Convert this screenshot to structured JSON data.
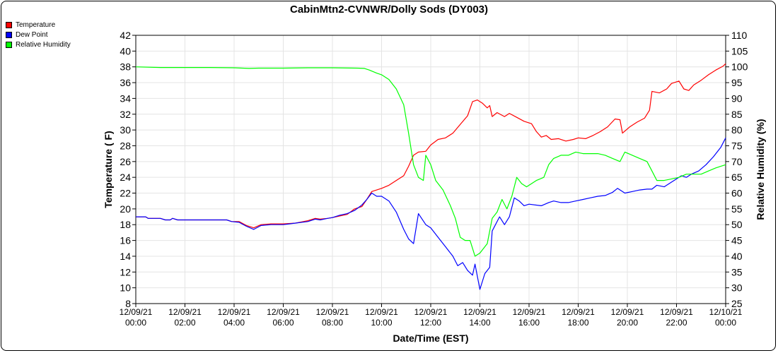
{
  "chart_data": {
    "type": "line",
    "title": "CabinMtn2-CVNWR/Dolly Sods (DY003)",
    "xlabel": "Date/Time (EST)",
    "ylabel_left": "Temperature ( F)",
    "ylabel_right": "Relative Humidity (%)",
    "ylim_left": [
      8,
      42
    ],
    "ylim_right": [
      25,
      110
    ],
    "yticks_left": [
      8,
      10,
      12,
      14,
      16,
      18,
      20,
      22,
      24,
      26,
      28,
      30,
      32,
      34,
      36,
      38,
      40,
      42
    ],
    "yticks_right": [
      25,
      30,
      35,
      40,
      45,
      50,
      55,
      60,
      65,
      70,
      75,
      80,
      85,
      90,
      95,
      100,
      105,
      110
    ],
    "xlim": [
      0,
      24
    ],
    "xticks": [
      {
        "hour": 0,
        "date": "12/09/21",
        "time": "00:00"
      },
      {
        "hour": 2,
        "date": "12/09/21",
        "time": "02:00"
      },
      {
        "hour": 4,
        "date": "12/09/21",
        "time": "04:00"
      },
      {
        "hour": 6,
        "date": "12/09/21",
        "time": "06:00"
      },
      {
        "hour": 8,
        "date": "12/09/21",
        "time": "08:00"
      },
      {
        "hour": 10,
        "date": "12/09/21",
        "time": "10:00"
      },
      {
        "hour": 12,
        "date": "12/09/21",
        "time": "12:00"
      },
      {
        "hour": 14,
        "date": "12/09/21",
        "time": "14:00"
      },
      {
        "hour": 16,
        "date": "12/09/21",
        "time": "16:00"
      },
      {
        "hour": 18,
        "date": "12/09/21",
        "time": "18:00"
      },
      {
        "hour": 20,
        "date": "12/09/21",
        "time": "20:00"
      },
      {
        "hour": 22,
        "date": "12/09/21",
        "time": "22:00"
      },
      {
        "hour": 24,
        "date": "12/10/21",
        "time": "00:00"
      }
    ],
    "grid": true,
    "legend_position": "top-left",
    "series": [
      {
        "name": "Temperature",
        "color": "#ff0000",
        "axis": "left",
        "points": [
          [
            0,
            19
          ],
          [
            0.4,
            19
          ],
          [
            0.5,
            18.8
          ],
          [
            1,
            18.8
          ],
          [
            1.2,
            18.6
          ],
          [
            1.4,
            18.6
          ],
          [
            1.5,
            18.8
          ],
          [
            1.7,
            18.6
          ],
          [
            2,
            18.6
          ],
          [
            3,
            18.6
          ],
          [
            3.7,
            18.6
          ],
          [
            3.9,
            18.4
          ],
          [
            4.2,
            18.4
          ],
          [
            4.5,
            17.9
          ],
          [
            4.8,
            17.6
          ],
          [
            5.1,
            18
          ],
          [
            5.5,
            18.1
          ],
          [
            6,
            18.1
          ],
          [
            6.5,
            18.2
          ],
          [
            7,
            18.5
          ],
          [
            7.3,
            18.8
          ],
          [
            7.5,
            18.7
          ],
          [
            7.8,
            18.8
          ],
          [
            8,
            18.9
          ],
          [
            8.3,
            19.1
          ],
          [
            8.6,
            19.3
          ],
          [
            8.9,
            20
          ],
          [
            9.2,
            20.3
          ],
          [
            9.4,
            21.2
          ],
          [
            9.6,
            22.2
          ],
          [
            9.8,
            22.4
          ],
          [
            10,
            22.6
          ],
          [
            10.3,
            23
          ],
          [
            10.6,
            23.6
          ],
          [
            10.9,
            24.2
          ],
          [
            11.1,
            25.4
          ],
          [
            11.3,
            26.8
          ],
          [
            11.5,
            27.2
          ],
          [
            11.8,
            27.3
          ],
          [
            12,
            28.1
          ],
          [
            12.3,
            28.8
          ],
          [
            12.6,
            29
          ],
          [
            12.9,
            29.6
          ],
          [
            13.2,
            30.7
          ],
          [
            13.5,
            31.8
          ],
          [
            13.7,
            33.6
          ],
          [
            13.9,
            33.8
          ],
          [
            14.1,
            33.4
          ],
          [
            14.3,
            32.8
          ],
          [
            14.4,
            33.1
          ],
          [
            14.5,
            31.7
          ],
          [
            14.7,
            32.2
          ],
          [
            15,
            31.7
          ],
          [
            15.2,
            32.1
          ],
          [
            15.5,
            31.6
          ],
          [
            15.8,
            31.1
          ],
          [
            16.1,
            30.8
          ],
          [
            16.3,
            29.8
          ],
          [
            16.5,
            29.1
          ],
          [
            16.7,
            29.3
          ],
          [
            16.9,
            28.8
          ],
          [
            17.2,
            28.9
          ],
          [
            17.5,
            28.6
          ],
          [
            17.8,
            28.8
          ],
          [
            18,
            29
          ],
          [
            18.3,
            28.9
          ],
          [
            18.6,
            29.3
          ],
          [
            18.9,
            29.8
          ],
          [
            19.2,
            30.4
          ],
          [
            19.5,
            31.4
          ],
          [
            19.7,
            31.3
          ],
          [
            19.8,
            29.6
          ],
          [
            20.1,
            30.4
          ],
          [
            20.4,
            31
          ],
          [
            20.7,
            31.5
          ],
          [
            20.9,
            32.5
          ],
          [
            21,
            34.9
          ],
          [
            21.3,
            34.7
          ],
          [
            21.6,
            35.2
          ],
          [
            21.8,
            35.9
          ],
          [
            22.1,
            36.2
          ],
          [
            22.3,
            35.2
          ],
          [
            22.5,
            35
          ],
          [
            22.7,
            35.7
          ],
          [
            23,
            36.3
          ],
          [
            23.3,
            37
          ],
          [
            23.6,
            37.6
          ],
          [
            23.9,
            38.1
          ],
          [
            24,
            38.4
          ]
        ]
      },
      {
        "name": "Dew Point",
        "color": "#0000ff",
        "axis": "left",
        "points": [
          [
            0,
            19
          ],
          [
            0.4,
            19
          ],
          [
            0.5,
            18.8
          ],
          [
            1,
            18.8
          ],
          [
            1.2,
            18.6
          ],
          [
            1.4,
            18.6
          ],
          [
            1.5,
            18.8
          ],
          [
            1.7,
            18.6
          ],
          [
            2,
            18.6
          ],
          [
            3,
            18.6
          ],
          [
            3.7,
            18.6
          ],
          [
            3.9,
            18.4
          ],
          [
            4.2,
            18.3
          ],
          [
            4.5,
            17.8
          ],
          [
            4.8,
            17.4
          ],
          [
            5.1,
            17.9
          ],
          [
            5.5,
            18
          ],
          [
            6,
            18
          ],
          [
            6.5,
            18.2
          ],
          [
            7,
            18.4
          ],
          [
            7.3,
            18.7
          ],
          [
            7.5,
            18.6
          ],
          [
            7.8,
            18.8
          ],
          [
            8,
            18.9
          ],
          [
            8.3,
            19.2
          ],
          [
            8.6,
            19.4
          ],
          [
            8.9,
            19.8
          ],
          [
            9.2,
            20.5
          ],
          [
            9.4,
            21.2
          ],
          [
            9.6,
            22
          ],
          [
            9.8,
            21.6
          ],
          [
            10,
            21.6
          ],
          [
            10.3,
            21
          ],
          [
            10.6,
            19.6
          ],
          [
            10.9,
            17.4
          ],
          [
            11.1,
            16.2
          ],
          [
            11.3,
            15.6
          ],
          [
            11.5,
            19.4
          ],
          [
            11.8,
            18
          ],
          [
            12,
            17.6
          ],
          [
            12.3,
            16.4
          ],
          [
            12.6,
            15.2
          ],
          [
            12.9,
            14
          ],
          [
            13.1,
            12.8
          ],
          [
            13.3,
            13.2
          ],
          [
            13.5,
            12.2
          ],
          [
            13.7,
            11.6
          ],
          [
            13.8,
            13
          ],
          [
            14,
            9.8
          ],
          [
            14.2,
            11.8
          ],
          [
            14.4,
            12.6
          ],
          [
            14.5,
            17.2
          ],
          [
            14.8,
            19
          ],
          [
            15,
            18
          ],
          [
            15.2,
            19
          ],
          [
            15.4,
            21.4
          ],
          [
            15.6,
            21
          ],
          [
            15.8,
            20.4
          ],
          [
            16,
            20.6
          ],
          [
            16.5,
            20.4
          ],
          [
            16.8,
            20.8
          ],
          [
            17,
            21
          ],
          [
            17.3,
            20.8
          ],
          [
            17.6,
            20.8
          ],
          [
            17.9,
            21
          ],
          [
            18.2,
            21.2
          ],
          [
            18.5,
            21.4
          ],
          [
            18.8,
            21.6
          ],
          [
            19.1,
            21.7
          ],
          [
            19.4,
            22.1
          ],
          [
            19.6,
            22.6
          ],
          [
            19.9,
            22
          ],
          [
            20.2,
            22.2
          ],
          [
            20.5,
            22.4
          ],
          [
            20.8,
            22.5
          ],
          [
            21,
            22.5
          ],
          [
            21.2,
            23
          ],
          [
            21.5,
            22.8
          ],
          [
            21.8,
            23.4
          ],
          [
            22,
            23.8
          ],
          [
            22.2,
            24.2
          ],
          [
            22.4,
            24
          ],
          [
            22.6,
            24.4
          ],
          [
            22.9,
            24.8
          ],
          [
            23.2,
            25.6
          ],
          [
            23.5,
            26.6
          ],
          [
            23.8,
            27.8
          ],
          [
            24,
            29
          ]
        ]
      },
      {
        "name": "Relative Humidity",
        "color": "#00ff00",
        "axis": "right",
        "points": [
          [
            0,
            100
          ],
          [
            1,
            99.8
          ],
          [
            2,
            99.8
          ],
          [
            3,
            99.8
          ],
          [
            4,
            99.7
          ],
          [
            4.6,
            99.5
          ],
          [
            5,
            99.6
          ],
          [
            6,
            99.6
          ],
          [
            7,
            99.7
          ],
          [
            8,
            99.7
          ],
          [
            9,
            99.6
          ],
          [
            9.3,
            99.5
          ],
          [
            9.5,
            99
          ],
          [
            9.8,
            98
          ],
          [
            10,
            97.5
          ],
          [
            10.3,
            96
          ],
          [
            10.6,
            93
          ],
          [
            10.9,
            88
          ],
          [
            11.1,
            79
          ],
          [
            11.3,
            69
          ],
          [
            11.5,
            65
          ],
          [
            11.7,
            64
          ],
          [
            11.8,
            72
          ],
          [
            12,
            69
          ],
          [
            12.2,
            64
          ],
          [
            12.5,
            61
          ],
          [
            12.8,
            56
          ],
          [
            13,
            52
          ],
          [
            13.2,
            46
          ],
          [
            13.4,
            45
          ],
          [
            13.6,
            45
          ],
          [
            13.8,
            40
          ],
          [
            14,
            41
          ],
          [
            14.3,
            44
          ],
          [
            14.5,
            52
          ],
          [
            14.7,
            54
          ],
          [
            14.9,
            58
          ],
          [
            15.1,
            55
          ],
          [
            15.3,
            59
          ],
          [
            15.5,
            65
          ],
          [
            15.7,
            63
          ],
          [
            15.9,
            62
          ],
          [
            16.1,
            63
          ],
          [
            16.3,
            64
          ],
          [
            16.6,
            65
          ],
          [
            16.8,
            69
          ],
          [
            17,
            71
          ],
          [
            17.3,
            72
          ],
          [
            17.6,
            72
          ],
          [
            17.9,
            73
          ],
          [
            18.2,
            72.5
          ],
          [
            18.5,
            72.5
          ],
          [
            18.8,
            72.5
          ],
          [
            19.1,
            72
          ],
          [
            19.4,
            71
          ],
          [
            19.7,
            70
          ],
          [
            19.9,
            73
          ],
          [
            20.2,
            72
          ],
          [
            20.5,
            71
          ],
          [
            20.8,
            70
          ],
          [
            21,
            67
          ],
          [
            21.2,
            64
          ],
          [
            21.5,
            64
          ],
          [
            21.8,
            64.5
          ],
          [
            22.1,
            65
          ],
          [
            22.4,
            66
          ],
          [
            22.7,
            66
          ],
          [
            23,
            66
          ],
          [
            23.3,
            67
          ],
          [
            23.6,
            68
          ],
          [
            24,
            69
          ]
        ]
      }
    ]
  }
}
